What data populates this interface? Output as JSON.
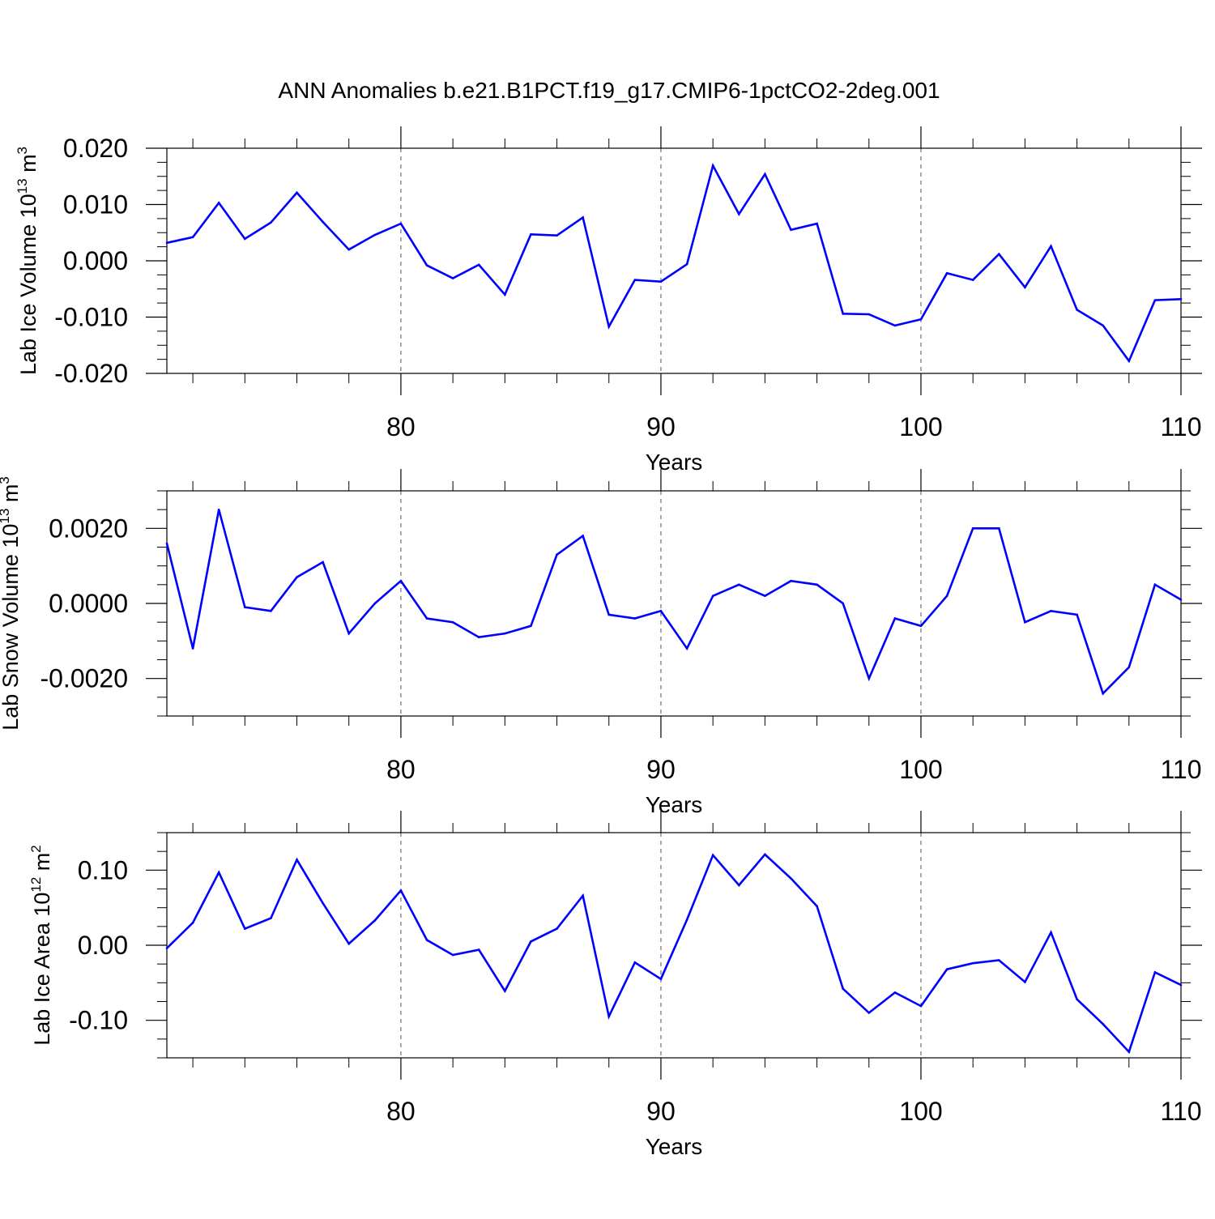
{
  "title": "ANN Anomalies b.e21.B1PCT.f19_g17.CMIP6-1pctCO2-2deg.001",
  "colors": {
    "line": "#0000ff",
    "axis": "#000000",
    "grid": "#555555"
  },
  "chart_data": [
    {
      "type": "line",
      "ylabel": "Lab Ice Volume 10",
      "ylabel_sup": "13",
      "ylabel_unit": " m",
      "ylabel_unit_sup": "3",
      "xlabel": "Years",
      "xlim": [
        71,
        110
      ],
      "ylim": [
        -0.02,
        0.02
      ],
      "xticks": [
        80,
        90,
        100,
        110
      ],
      "xtick_labels": [
        "80",
        "90",
        "100",
        "110"
      ],
      "yticks": [
        -0.02,
        -0.01,
        0.0,
        0.01,
        0.02
      ],
      "ytick_labels": [
        "-0.020",
        "-0.010",
        "0.000",
        "0.010",
        "0.020"
      ],
      "grid_x": [
        80,
        90,
        100
      ],
      "x": [
        71,
        72,
        73,
        74,
        75,
        76,
        77,
        78,
        79,
        80,
        81,
        82,
        83,
        84,
        85,
        86,
        87,
        88,
        89,
        90,
        91,
        92,
        93,
        94,
        95,
        96,
        97,
        98,
        99,
        100,
        101,
        102,
        103,
        104,
        105,
        106,
        107,
        108,
        109,
        110
      ],
      "y": [
        0.0032,
        0.0042,
        0.0103,
        0.0039,
        0.0068,
        0.0121,
        0.0069,
        0.002,
        0.0046,
        0.0066,
        -0.0008,
        -0.0031,
        -0.0007,
        -0.006,
        0.0047,
        0.0045,
        0.0077,
        -0.0117,
        -0.0034,
        -0.0037,
        -0.0006,
        0.0169,
        0.0083,
        0.0154,
        0.0055,
        0.0066,
        -0.0094,
        -0.0095,
        -0.0115,
        -0.0104,
        -0.0022,
        -0.0034,
        0.0012,
        -0.0047,
        0.0026,
        -0.0087,
        -0.0115,
        -0.0178,
        -0.007,
        -0.0068
      ]
    },
    {
      "type": "line",
      "ylabel": "Lab Snow Volume 10",
      "ylabel_sup": "13",
      "ylabel_unit": " m",
      "ylabel_unit_sup": "3",
      "xlabel": "Years",
      "xlim": [
        71,
        110
      ],
      "ylim": [
        -0.003,
        0.003
      ],
      "xticks": [
        80,
        90,
        100,
        110
      ],
      "xtick_labels": [
        "80",
        "90",
        "100",
        "110"
      ],
      "yticks": [
        -0.002,
        0.0,
        0.002
      ],
      "ytick_labels": [
        "-0.0020",
        "0.0000",
        "0.0020"
      ],
      "grid_x": [
        80,
        90,
        100
      ],
      "x": [
        71,
        72,
        73,
        74,
        75,
        76,
        77,
        78,
        79,
        80,
        81,
        82,
        83,
        84,
        85,
        86,
        87,
        88,
        89,
        90,
        91,
        92,
        93,
        94,
        95,
        96,
        97,
        98,
        99,
        100,
        101,
        102,
        103,
        104,
        105,
        106,
        107,
        108,
        109,
        110
      ],
      "y": [
        0.0016,
        -0.0012,
        0.0025,
        -0.0001,
        -0.0002,
        0.0007,
        0.0011,
        -0.0008,
        0.0,
        0.0006,
        -0.0004,
        -0.0005,
        -0.0009,
        -0.0008,
        -0.0006,
        0.0013,
        0.0018,
        -0.0003,
        -0.0004,
        -0.0002,
        -0.0012,
        0.0002,
        0.0005,
        0.0002,
        0.0006,
        0.0005,
        0.0,
        -0.002,
        -0.0004,
        -0.0006,
        0.0002,
        0.002,
        0.002,
        -0.0005,
        -0.0002,
        -0.0003,
        -0.0024,
        -0.0017,
        0.0005,
        0.0001
      ]
    },
    {
      "type": "line",
      "ylabel": "Lab Ice Area 10",
      "ylabel_sup": "12",
      "ylabel_unit": " m",
      "ylabel_unit_sup": "2",
      "xlabel": "Years",
      "xlim": [
        71,
        110
      ],
      "ylim": [
        -0.15,
        0.15
      ],
      "xticks": [
        80,
        90,
        100,
        110
      ],
      "xtick_labels": [
        "80",
        "90",
        "100",
        "110"
      ],
      "yticks": [
        -0.1,
        0.0,
        0.1
      ],
      "ytick_labels": [
        "-0.10",
        "0.00",
        "0.10"
      ],
      "grid_x": [
        80,
        90,
        100
      ],
      "x": [
        71,
        72,
        73,
        74,
        75,
        76,
        77,
        78,
        79,
        80,
        81,
        82,
        83,
        84,
        85,
        86,
        87,
        88,
        89,
        90,
        91,
        92,
        93,
        94,
        95,
        96,
        97,
        98,
        99,
        100,
        101,
        102,
        103,
        104,
        105,
        106,
        107,
        108,
        109,
        110
      ],
      "y": [
        -0.004,
        0.03,
        0.097,
        0.022,
        0.036,
        0.114,
        0.056,
        0.002,
        0.033,
        0.073,
        0.007,
        -0.013,
        -0.006,
        -0.061,
        0.005,
        0.022,
        0.066,
        -0.095,
        -0.023,
        -0.045,
        0.034,
        0.12,
        0.08,
        0.121,
        0.089,
        0.052,
        -0.058,
        -0.09,
        -0.063,
        -0.081,
        -0.032,
        -0.024,
        -0.02,
        -0.049,
        0.017,
        -0.072,
        -0.105,
        -0.142,
        -0.036,
        -0.053
      ]
    }
  ]
}
